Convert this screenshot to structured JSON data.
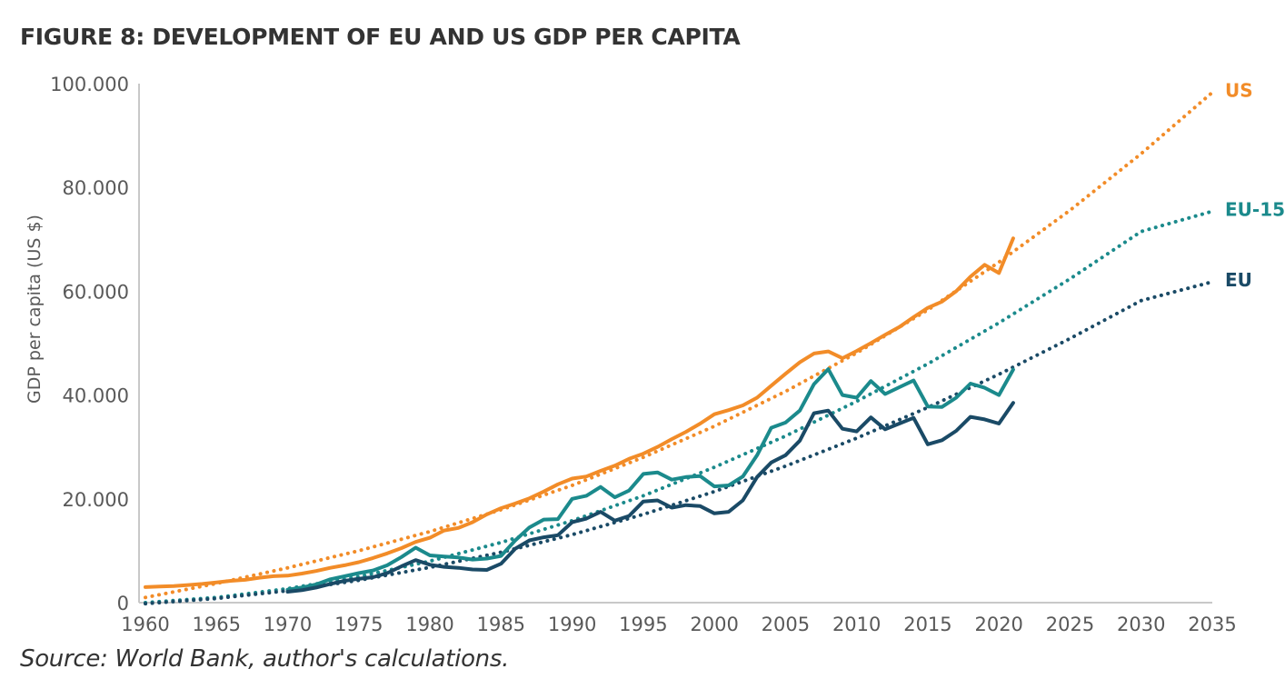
{
  "title": "FIGURE 8: DEVELOPMENT OF EU AND US GDP PER CAPITA",
  "source": "Source: World Bank, author's calculations.",
  "chart_data": {
    "type": "line",
    "title": "FIGURE 8: DEVELOPMENT OF EU AND US GDP PER CAPITA",
    "xlabel": "",
    "ylabel": "GDP per capita (US $)",
    "xlim": [
      1960,
      2035
    ],
    "ylim": [
      0,
      100000
    ],
    "x_ticks": [
      "1960",
      "1965",
      "1970",
      "1975",
      "1980",
      "1985",
      "1990",
      "1995",
      "2000",
      "2005",
      "2010",
      "2015",
      "2020",
      "2025",
      "2030",
      "2035"
    ],
    "y_ticks": [
      {
        "value": 0,
        "label": "0"
      },
      {
        "value": 20000,
        "label": "20.000"
      },
      {
        "value": 40000,
        "label": "40.000"
      },
      {
        "value": 60000,
        "label": "60.000"
      },
      {
        "value": 80000,
        "label": "80.000"
      },
      {
        "value": 100000,
        "label": "100.000"
      }
    ],
    "grid": false,
    "legend": "direct labels at right end of trend lines",
    "series": [
      {
        "name": "US",
        "label": "US",
        "color": "#F28C28",
        "style": "solid",
        "x": [
          1960,
          1961,
          1962,
          1963,
          1964,
          1965,
          1966,
          1967,
          1968,
          1969,
          1970,
          1971,
          1972,
          1973,
          1974,
          1975,
          1976,
          1977,
          1978,
          1979,
          1980,
          1981,
          1982,
          1983,
          1984,
          1985,
          1986,
          1987,
          1988,
          1989,
          1990,
          1991,
          1992,
          1993,
          1994,
          1995,
          1996,
          1997,
          1998,
          1999,
          2000,
          2001,
          2002,
          2003,
          2004,
          2005,
          2006,
          2007,
          2008,
          2009,
          2010,
          2011,
          2012,
          2013,
          2014,
          2015,
          2016,
          2017,
          2018,
          2019,
          2020,
          2021
        ],
        "values": [
          3000,
          3100,
          3200,
          3400,
          3600,
          3900,
          4200,
          4400,
          4800,
          5100,
          5200,
          5600,
          6100,
          6700,
          7200,
          7800,
          8600,
          9500,
          10500,
          11700,
          12500,
          13900,
          14400,
          15500,
          17000,
          18200,
          19100,
          20100,
          21400,
          22800,
          23900,
          24300,
          25400,
          26400,
          27700,
          28700,
          30000,
          31500,
          32900,
          34500,
          36300,
          37100,
          38000,
          39500,
          41800,
          44100,
          46300,
          48000,
          48400,
          47100,
          48500,
          50000,
          51600,
          53100,
          55000,
          56800,
          58000,
          60000,
          62800,
          65100,
          63500,
          70200
        ]
      },
      {
        "name": "EU-15",
        "label": "EU-15",
        "color": "#1B8A8C",
        "style": "solid",
        "x": [
          1970,
          1971,
          1972,
          1973,
          1974,
          1975,
          1976,
          1977,
          1978,
          1979,
          1980,
          1981,
          1982,
          1983,
          1984,
          1985,
          1986,
          1987,
          1988,
          1989,
          1990,
          1991,
          1992,
          1993,
          1994,
          1995,
          1996,
          1997,
          1998,
          1999,
          2000,
          2001,
          2002,
          2003,
          2004,
          2005,
          2006,
          2007,
          2008,
          2009,
          2010,
          2011,
          2012,
          2013,
          2014,
          2015,
          2016,
          2017,
          2018,
          2019,
          2020,
          2021
        ],
        "values": [
          2500,
          2900,
          3500,
          4500,
          5100,
          5700,
          6200,
          7200,
          8800,
          10600,
          9100,
          8900,
          8700,
          8300,
          8500,
          9000,
          12000,
          14500,
          16000,
          16100,
          20000,
          20600,
          22300,
          20300,
          21600,
          24800,
          25100,
          23700,
          24200,
          24400,
          22400,
          22600,
          24300,
          28400,
          33700,
          34700,
          37000,
          42100,
          45000,
          40000,
          39500,
          42700,
          40200,
          41500,
          42800,
          37800,
          37700,
          39500,
          42200,
          41400,
          40000,
          44900
        ]
      },
      {
        "name": "EU",
        "label": "EU",
        "color": "#1A4A66",
        "style": "solid",
        "x": [
          1970,
          1971,
          1972,
          1973,
          1974,
          1975,
          1976,
          1977,
          1978,
          1979,
          1980,
          1981,
          1982,
          1983,
          1984,
          1985,
          1986,
          1987,
          1988,
          1989,
          1990,
          1991,
          1992,
          1993,
          1994,
          1995,
          1996,
          1997,
          1998,
          1999,
          2000,
          2001,
          2002,
          2003,
          2004,
          2005,
          2006,
          2007,
          2008,
          2009,
          2010,
          2011,
          2012,
          2013,
          2014,
          2015,
          2016,
          2017,
          2018,
          2019,
          2020,
          2021
        ],
        "values": [
          2100,
          2400,
          2900,
          3600,
          4200,
          4600,
          4900,
          5700,
          7000,
          8200,
          7300,
          6900,
          6700,
          6400,
          6300,
          7500,
          10400,
          12000,
          12600,
          13000,
          15500,
          16200,
          17500,
          15800,
          16700,
          19500,
          19700,
          18300,
          18800,
          18600,
          17200,
          17500,
          19700,
          24200,
          27000,
          28400,
          31200,
          36500,
          37000,
          33500,
          33000,
          35700,
          33400,
          34500,
          35600,
          30500,
          31300,
          33100,
          35800,
          35300,
          34500,
          38500
        ]
      },
      {
        "name": "US trend",
        "label": "US",
        "color": "#F28C28",
        "style": "dotted",
        "x": [
          1960,
          1965,
          1970,
          1975,
          1980,
          1985,
          1990,
          1995,
          2000,
          2005,
          2010,
          2015,
          2020,
          2025,
          2030,
          2035
        ],
        "values": [
          1000,
          3700,
          6700,
          10000,
          13700,
          17900,
          22600,
          28000,
          34000,
          40700,
          48100,
          56400,
          65600,
          75600,
          86500,
          98300
        ]
      },
      {
        "name": "EU-15 trend",
        "label": "EU-15",
        "color": "#1B8A8C",
        "style": "dotted",
        "x": [
          1960,
          1965,
          1970,
          1975,
          1980,
          1985,
          1990,
          1995,
          2000,
          2005,
          2010,
          2015,
          2020,
          2025,
          2030,
          2035
        ],
        "values": [
          0,
          1000,
          2700,
          5000,
          8000,
          11600,
          15800,
          20600,
          26100,
          32100,
          38800,
          46000,
          53900,
          62400,
          71500,
          75400
        ]
      },
      {
        "name": "EU trend",
        "label": "EU",
        "color": "#1A4A66",
        "style": "dotted",
        "x": [
          1960,
          1965,
          1970,
          1975,
          1980,
          1985,
          1990,
          1995,
          2000,
          2005,
          2010,
          2015,
          2020,
          2025,
          2030,
          2035
        ],
        "values": [
          -200,
          800,
          2300,
          4300,
          6800,
          9700,
          13100,
          17000,
          21400,
          26300,
          31700,
          37600,
          44000,
          50900,
          58200,
          61800
        ]
      }
    ]
  }
}
